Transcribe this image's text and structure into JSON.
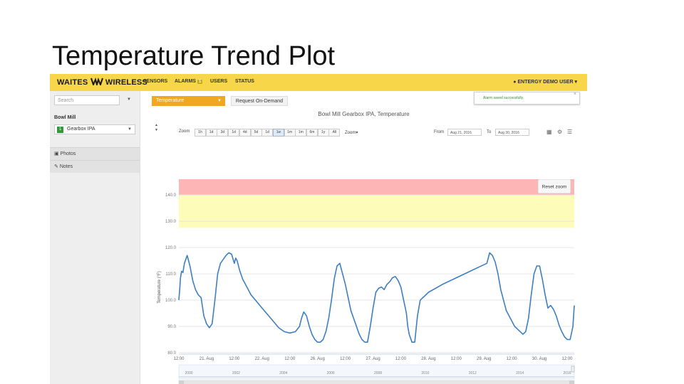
{
  "slide": {
    "title": "Temperature Trend Plot"
  },
  "navbar": {
    "logo_left": "WAITES",
    "logo_right": "WIRELESS",
    "links": [
      "SENSORS",
      "ALARMS",
      "USERS",
      "STATUS"
    ],
    "alarms_badge": "1",
    "user": "ENTERGY DEMO USER"
  },
  "sidebar": {
    "search_placeholder": "Search",
    "site": "Bowl Mill",
    "sensor": "Gearbox IPA",
    "sensor_badge": "1",
    "items": [
      {
        "icon": "camera-icon",
        "label": "Photos"
      },
      {
        "icon": "pencil-icon",
        "label": "Notes"
      }
    ]
  },
  "main": {
    "measurement_select": "Temperature",
    "request_button": "Request On-Demand",
    "toast": "Alarm saved successfully.",
    "toast_close": "×"
  },
  "toolbar": {
    "zoom_label": "Zoom",
    "zoom_options": [
      "1h",
      "1d",
      "3d",
      "1d",
      "4d",
      "5d",
      "1d",
      "1w",
      "1m",
      "1m",
      "6m",
      "1y",
      "All"
    ],
    "zoom_active_index": 7,
    "mode_select": "Zoom",
    "from_label": "From",
    "from_value": "Aug 21, 2016",
    "to_label": "To",
    "to_value": "Aug 30, 2016",
    "reset_zoom": "Reset zoom"
  },
  "colors": {
    "alarm": "#fdb5b5",
    "warning": "#fdfdb9",
    "line": "#3d7fc1",
    "navbar": "#f7d64a",
    "select": "#f0a821"
  },
  "chart_data": {
    "type": "line",
    "title": "Bowl Mill Gearbox IPA, Temperature",
    "ylabel": "Temperature (°F)",
    "ylim": [
      80,
      146
    ],
    "yticks": [
      "80.0",
      "90.0",
      "100.0",
      "110.0",
      "120.0",
      "130.0",
      "140.0"
    ],
    "xticks": [
      "12:00",
      "21. Aug",
      "12:00",
      "22. Aug",
      "12:00",
      "26. Aug",
      "12:00",
      "27. Aug",
      "12:00",
      "28. Aug",
      "12:00",
      "29. Aug",
      "12:00",
      "30. Aug",
      "12:00"
    ],
    "bands": [
      {
        "name": "alarm",
        "from": 140,
        "to": 146
      },
      {
        "name": "warning",
        "from": 127.5,
        "to": 140
      }
    ],
    "series": [
      {
        "x": [
          0,
          0.03,
          0.06,
          0.1,
          0.15,
          0.2,
          0.3,
          0.4,
          0.5,
          0.6,
          0.7,
          0.8,
          0.9,
          1.0,
          1.1,
          1.2,
          1.3,
          1.4,
          1.5,
          1.6,
          1.7,
          1.8,
          1.9,
          2.0,
          2.05,
          2.1,
          2.2,
          2.3,
          2.4,
          2.5,
          2.6,
          2.8,
          3.0,
          3.2,
          3.4,
          3.6,
          3.8,
          4.0,
          4.2,
          4.35,
          4.42,
          4.5,
          4.6,
          4.7,
          4.8,
          4.9,
          5.0,
          5.1,
          5.2,
          5.3,
          5.4,
          5.5,
          5.6,
          5.7,
          5.8,
          5.9,
          6.0,
          6.1,
          6.2,
          6.3,
          6.4,
          6.5,
          6.6,
          6.7,
          6.8,
          6.9,
          7.0,
          7.1,
          7.2,
          7.3,
          7.4,
          7.5,
          7.6,
          7.7,
          7.8,
          7.9,
          8.0,
          8.1,
          8.2,
          8.25,
          8.3,
          8.4,
          8.5,
          8.6,
          8.7,
          9.0,
          9.5,
          10.0,
          10.5,
          10.8,
          11.0,
          11.1,
          11.2,
          11.3,
          11.4,
          11.5,
          11.6,
          11.7,
          11.8,
          11.9,
          12.0,
          12.1,
          12.2,
          12.3,
          12.4,
          12.5,
          12.6,
          12.7,
          12.8,
          12.9,
          13.0,
          13.1,
          13.2,
          13.3,
          13.4,
          13.5,
          13.6,
          13.7,
          13.8,
          13.9,
          14.0,
          14.1,
          14.2,
          14.25
        ],
        "y": [
          100.0,
          104.0,
          108.5,
          111.0,
          110.5,
          114.0,
          117.0,
          113.0,
          107.5,
          104.0,
          102.0,
          101.0,
          94.0,
          91.0,
          89.5,
          91.0,
          100.0,
          110.0,
          114.0,
          115.5,
          117.0,
          118.0,
          117.5,
          114.0,
          116.0,
          115.0,
          111.0,
          108.0,
          106.0,
          104.0,
          102.0,
          99.5,
          97.0,
          94.5,
          92.0,
          89.5,
          88.0,
          87.5,
          88.0,
          90.0,
          93.0,
          95.5,
          94.0,
          90.0,
          87.0,
          85.0,
          84.0,
          84.0,
          85.0,
          88.0,
          93.0,
          100.0,
          108.0,
          113.0,
          114.0,
          110.0,
          106.0,
          101.0,
          96.0,
          93.0,
          90.0,
          87.0,
          85.0,
          84.0,
          84.0,
          90.0,
          97.0,
          103.0,
          104.5,
          105.0,
          104.0,
          106.0,
          107.0,
          108.5,
          109.0,
          107.5,
          105.0,
          100.0,
          95.0,
          90.0,
          87.0,
          84.0,
          84.0,
          94.0,
          100.0,
          103.0,
          106.0,
          108.5,
          111.0,
          112.5,
          113.5,
          114.0,
          118.0,
          117.0,
          114.5,
          110.0,
          104.0,
          100.0,
          96.0,
          94.0,
          92.0,
          90.0,
          89.0,
          88.0,
          87.0,
          88.0,
          93.0,
          102.0,
          110.0,
          113.0,
          113.0,
          108.0,
          102.0,
          97.0,
          98.0,
          96.5,
          94.0,
          90.5,
          88.0,
          86.0,
          85.0,
          85.0,
          90.0,
          98.0
        ]
      }
    ],
    "navigator_labels": [
      "2000",
      "2002",
      "2004",
      "2006",
      "2008",
      "2010",
      "2012",
      "2014",
      "2016"
    ]
  }
}
